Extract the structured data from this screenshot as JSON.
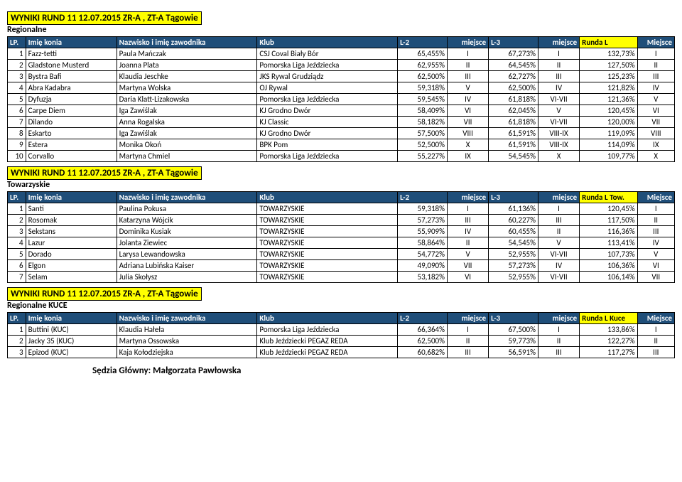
{
  "tables": [
    {
      "title": "WYNIKI RUND 11 12.07.2015 ZR-A , ZT-A Tągowie",
      "subtitle": "Regionalne",
      "runda_header": "Runda L",
      "l3_header": "L-3",
      "rows": [
        {
          "lp": "1",
          "horse": "Fazz-tetti",
          "rider": "Paula Mańczak",
          "club": "CSJ Coval Biały Bór",
          "l2": "65,455%",
          "l2p": "I",
          "l3": "67,273%",
          "l3p": "I",
          "r": "132,73%",
          "rp": "I"
        },
        {
          "lp": "2",
          "horse": "Gladstone Musterd",
          "rider": "Joanna Plata",
          "club": "Pomorska Liga Jeździecka",
          "l2": "62,955%",
          "l2p": "II",
          "l3": "64,545%",
          "l3p": "II",
          "r": "127,50%",
          "rp": "II"
        },
        {
          "lp": "3",
          "horse": "Bystra Bafi",
          "rider": "Klaudia Jeschke",
          "club": "JKS Rywal Grudziądz",
          "l2": "62,500%",
          "l2p": "III",
          "l3": "62,727%",
          "l3p": "III",
          "r": "125,23%",
          "rp": "III"
        },
        {
          "lp": "4",
          "horse": "Abra Kadabra",
          "rider": "Martyna Wolska",
          "club": "OJ Rywal",
          "l2": "59,318%",
          "l2p": "V",
          "l3": "62,500%",
          "l3p": "IV",
          "r": "121,82%",
          "rp": "IV"
        },
        {
          "lp": "5",
          "horse": "Dyfuzja",
          "rider": "Daria Klatt-Lizakowska",
          "club": "Pomorska Liga Jeździecka",
          "l2": "59,545%",
          "l2p": "IV",
          "l3": "61,818%",
          "l3p": "VI-VII",
          "r": "121,36%",
          "rp": "V"
        },
        {
          "lp": "6",
          "horse": "Carpe Diem",
          "rider": "Iga Zawiślak",
          "club": "KJ Grodno Dwór",
          "l2": "58,409%",
          "l2p": "VI",
          "l3": "62,045%",
          "l3p": "V",
          "r": "120,45%",
          "rp": "VI"
        },
        {
          "lp": "7",
          "horse": "Dilando",
          "rider": "Anna Rogalska",
          "club": "KJ Classic",
          "l2": "58,182%",
          "l2p": "VII",
          "l3": "61,818%",
          "l3p": "VI-VII",
          "r": "120,00%",
          "rp": "VII"
        },
        {
          "lp": "8",
          "horse": "Eskarto",
          "rider": "Iga Zawiślak",
          "club": "KJ Grodno Dwór",
          "l2": "57,500%",
          "l2p": "VIII",
          "l3": "61,591%",
          "l3p": "VIII-IX",
          "r": "119,09%",
          "rp": "VIII"
        },
        {
          "lp": "9",
          "horse": "Estera",
          "rider": "Monika Okoń",
          "club": "BPK Pom",
          "l2": "52,500%",
          "l2p": "X",
          "l3": "61,591%",
          "l3p": "VIII-IX",
          "r": "114,09%",
          "rp": "IX"
        },
        {
          "lp": "10",
          "horse": "Corvallo",
          "rider": "Martyna Chmiel",
          "club": "Pomorska Liga Jeździecka",
          "l2": "55,227%",
          "l2p": "IX",
          "l3": "54,545%",
          "l3p": "X",
          "r": "109,77%",
          "rp": "X"
        }
      ]
    },
    {
      "title": "WYNIKI RUND 11 12.07.2015 ZR-A , ZT-A Tągowie",
      "subtitle": "Towarzyskie",
      "runda_header": "Runda L Tow.",
      "l3_header": "L-3",
      "rows": [
        {
          "lp": "1",
          "horse": "Santi",
          "rider": "Paulina Pokusa",
          "club": "TOWARZYSKIE",
          "l2": "59,318%",
          "l2p": "I",
          "l3": "61,136%",
          "l3p": "I",
          "r": "120,45%",
          "rp": "I"
        },
        {
          "lp": "2",
          "horse": "Rosomak",
          "rider": "Katarzyna Wójcik",
          "club": "TOWARZYSKIE",
          "l2": "57,273%",
          "l2p": "III",
          "l3": "60,227%",
          "l3p": "III",
          "r": "117,50%",
          "rp": "II"
        },
        {
          "lp": "3",
          "horse": "Sekstans",
          "rider": "Dominika Kusiak",
          "club": "TOWARZYSKIE",
          "l2": "55,909%",
          "l2p": "IV",
          "l3": "60,455%",
          "l3p": "II",
          "r": "116,36%",
          "rp": "III"
        },
        {
          "lp": "4",
          "horse": "Lazur",
          "rider": "Jolanta Ziewiec",
          "club": "TOWARZYSKIE",
          "l2": "58,864%",
          "l2p": "II",
          "l3": "54,545%",
          "l3p": "V",
          "r": "113,41%",
          "rp": "IV"
        },
        {
          "lp": "5",
          "horse": "Dorado",
          "rider": "Larysa Lewandowska",
          "club": "TOWARZYSKIE",
          "l2": "54,772%",
          "l2p": "V",
          "l3": "52,955%",
          "l3p": "VI-VII",
          "r": "107,73%",
          "rp": "V"
        },
        {
          "lp": "6",
          "horse": "Elgon",
          "rider": "Adriana Lubińska Kaiser",
          "club": "TOWARZYSKIE",
          "l2": "49,090%",
          "l2p": "VII",
          "l3": "57,273%",
          "l3p": "IV",
          "r": "106,36%",
          "rp": "VI"
        },
        {
          "lp": "7",
          "horse": "Selam",
          "rider": "Julia Skołysz",
          "club": "TOWARZYSKIE",
          "l2": "53,182%",
          "l2p": "VI",
          "l3": "52,955%",
          "l3p": "VI-VII",
          "r": "106,14%",
          "rp": "VII"
        }
      ]
    },
    {
      "title": "WYNIKI RUND 11 12.07.2015 ZR-A , ZT-A Tągowie",
      "subtitle": "Regionalne KUCE",
      "runda_header": "Runda L Kuce",
      "l3_header": "L-3",
      "rows": [
        {
          "lp": "1",
          "horse": "Buttini (KUC)",
          "rider": "Klaudia Hałeła",
          "club": "Pomorska Liga Jeździecka",
          "l2": "66,364%",
          "l2p": "I",
          "l3": "67,500%",
          "l3p": "I",
          "r": "133,86%",
          "rp": "I"
        },
        {
          "lp": "2",
          "horse": "Jacky 35 (KUC)",
          "rider": "Martyna Ossowska",
          "club": "Klub Jeździecki PEGAZ REDA",
          "l2": "62,500%",
          "l2p": "II",
          "l3": "59,773%",
          "l3p": "II",
          "r": "122,27%",
          "rp": "II"
        },
        {
          "lp": "3",
          "horse": "Epizod (KUC)",
          "rider": "Kaja Kołodziejska",
          "club": "Klub Jeździecki PEGAZ REDA",
          "l2": "60,682%",
          "l2p": "III",
          "l3": "56,591%",
          "l3p": "III",
          "r": "117,27%",
          "rp": "III"
        }
      ]
    }
  ],
  "headers": {
    "lp": "LP.",
    "horse": "Imię konia",
    "rider": "Nazwisko i imię zawodnika",
    "club": "Klub",
    "l2": "L-2",
    "miejsce": "miejsce",
    "Miejsce": "Miejsce"
  },
  "footer": "Sędzia Główny: Małgorzata Pawłowska"
}
